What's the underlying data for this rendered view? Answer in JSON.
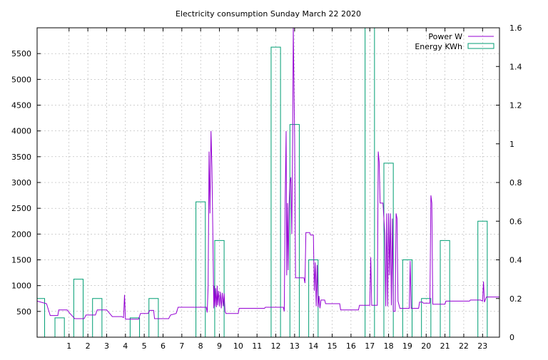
{
  "chart_data": {
    "type": "bar+line",
    "title": "Electricity consumption Sunday March 22 2020",
    "xlabel": "",
    "ylabel": "",
    "y2label": "",
    "xlim": [
      -0.7,
      23.9
    ],
    "ylim": [
      0,
      6000
    ],
    "y2lim": [
      0,
      1.6
    ],
    "x_ticks": [
      1,
      2,
      3,
      4,
      5,
      6,
      7,
      8,
      9,
      10,
      11,
      12,
      13,
      14,
      15,
      16,
      17,
      18,
      19,
      20,
      21,
      22,
      23
    ],
    "y_ticks": [
      500,
      1000,
      1500,
      2000,
      2500,
      3000,
      3500,
      4000,
      4500,
      5000,
      5500
    ],
    "y2_ticks": [
      0,
      0.2,
      0.4,
      0.6,
      0.8,
      1,
      1.2,
      1.4,
      1.6
    ],
    "grid": true,
    "legend_position": "top-right",
    "colors": {
      "power": "#9400d3",
      "energy": "#009e73"
    },
    "series": [
      {
        "name": "Power W",
        "type": "line",
        "axis": "y",
        "points": [
          [
            -0.7,
            700
          ],
          [
            -0.2,
            650
          ],
          [
            0.0,
            420
          ],
          [
            0.4,
            420
          ],
          [
            0.45,
            530
          ],
          [
            0.9,
            530
          ],
          [
            1.0,
            480
          ],
          [
            1.3,
            360
          ],
          [
            1.5,
            360
          ],
          [
            1.8,
            360
          ],
          [
            1.9,
            430
          ],
          [
            2.4,
            430
          ],
          [
            2.5,
            530
          ],
          [
            3.0,
            530
          ],
          [
            3.3,
            400
          ],
          [
            3.8,
            400
          ],
          [
            3.9,
            380
          ],
          [
            3.95,
            820
          ],
          [
            4.0,
            350
          ],
          [
            4.7,
            350
          ],
          [
            4.8,
            460
          ],
          [
            5.2,
            460
          ],
          [
            5.3,
            520
          ],
          [
            5.5,
            520
          ],
          [
            5.55,
            360
          ],
          [
            6.3,
            360
          ],
          [
            6.4,
            430
          ],
          [
            6.7,
            460
          ],
          [
            6.8,
            580
          ],
          [
            8.3,
            580
          ],
          [
            8.35,
            480
          ],
          [
            8.4,
            1000
          ],
          [
            8.45,
            3600
          ],
          [
            8.5,
            2400
          ],
          [
            8.55,
            4000
          ],
          [
            8.6,
            3300
          ],
          [
            8.65,
            2000
          ],
          [
            8.7,
            560
          ],
          [
            8.72,
            1000
          ],
          [
            8.76,
            600
          ],
          [
            8.8,
            950
          ],
          [
            8.84,
            580
          ],
          [
            8.88,
            1000
          ],
          [
            8.9,
            620
          ],
          [
            8.95,
            900
          ],
          [
            9.0,
            600
          ],
          [
            9.05,
            880
          ],
          [
            9.1,
            560
          ],
          [
            9.15,
            860
          ],
          [
            9.2,
            600
          ],
          [
            9.25,
            850
          ],
          [
            9.3,
            500
          ],
          [
            9.35,
            460
          ],
          [
            10.0,
            460
          ],
          [
            10.05,
            560
          ],
          [
            11.4,
            560
          ],
          [
            11.45,
            580
          ],
          [
            12.4,
            580
          ],
          [
            12.45,
            500
          ],
          [
            12.5,
            2700
          ],
          [
            12.55,
            4000
          ],
          [
            12.58,
            1200
          ],
          [
            12.62,
            2600
          ],
          [
            12.66,
            1300
          ],
          [
            12.7,
            2500
          ],
          [
            12.75,
            3000
          ],
          [
            12.8,
            3100
          ],
          [
            12.85,
            2000
          ],
          [
            12.9,
            4000
          ],
          [
            12.93,
            6000
          ],
          [
            12.96,
            5100
          ],
          [
            13.0,
            3900
          ],
          [
            13.05,
            1150
          ],
          [
            13.5,
            1150
          ],
          [
            13.55,
            1050
          ],
          [
            13.6,
            2030
          ],
          [
            13.8,
            2030
          ],
          [
            13.85,
            1980
          ],
          [
            14.0,
            1980
          ],
          [
            14.05,
            900
          ],
          [
            14.1,
            1450
          ],
          [
            14.15,
            600
          ],
          [
            14.2,
            1400
          ],
          [
            14.25,
            580
          ],
          [
            14.3,
            800
          ],
          [
            14.35,
            560
          ],
          [
            14.4,
            720
          ],
          [
            14.6,
            720
          ],
          [
            14.65,
            650
          ],
          [
            15.4,
            650
          ],
          [
            15.45,
            530
          ],
          [
            16.4,
            530
          ],
          [
            16.45,
            620
          ],
          [
            17.0,
            620
          ],
          [
            17.05,
            1550
          ],
          [
            17.1,
            620
          ],
          [
            17.4,
            620
          ],
          [
            17.45,
            3600
          ],
          [
            17.5,
            3400
          ],
          [
            17.55,
            2600
          ],
          [
            17.7,
            2600
          ],
          [
            17.8,
            2000
          ],
          [
            17.85,
            600
          ],
          [
            17.9,
            2400
          ],
          [
            17.95,
            600
          ],
          [
            18.0,
            2400
          ],
          [
            18.05,
            1200
          ],
          [
            18.1,
            2400
          ],
          [
            18.15,
            620
          ],
          [
            18.2,
            2300
          ],
          [
            18.25,
            500
          ],
          [
            18.35,
            500
          ],
          [
            18.4,
            2400
          ],
          [
            18.45,
            2300
          ],
          [
            18.5,
            700
          ],
          [
            18.6,
            560
          ],
          [
            19.1,
            560
          ],
          [
            19.15,
            1480
          ],
          [
            19.2,
            560
          ],
          [
            19.6,
            560
          ],
          [
            19.65,
            680
          ],
          [
            19.8,
            680
          ],
          [
            19.85,
            660
          ],
          [
            20.2,
            660
          ],
          [
            20.25,
            2750
          ],
          [
            20.3,
            2600
          ],
          [
            20.35,
            640
          ],
          [
            21.0,
            640
          ],
          [
            21.05,
            700
          ],
          [
            22.3,
            700
          ],
          [
            22.35,
            720
          ],
          [
            22.9,
            720
          ],
          [
            23.0,
            700
          ],
          [
            23.05,
            1080
          ],
          [
            23.1,
            680
          ],
          [
            23.2,
            780
          ],
          [
            23.9,
            780
          ]
        ]
      },
      {
        "name": "Energy KWh",
        "type": "bar",
        "axis": "y2",
        "bars": [
          [
            -0.7,
            -0.3,
            0.2
          ],
          [
            0.25,
            0.75,
            0.1
          ],
          [
            1.25,
            1.75,
            0.3
          ],
          [
            2.25,
            2.75,
            0.2
          ],
          [
            4.25,
            4.75,
            0.1
          ],
          [
            5.25,
            5.75,
            0.2
          ],
          [
            7.75,
            8.25,
            0.7
          ],
          [
            8.75,
            9.25,
            0.5
          ],
          [
            11.75,
            12.25,
            1.5
          ],
          [
            12.75,
            13.25,
            1.1
          ],
          [
            13.75,
            14.25,
            0.4
          ],
          [
            16.75,
            17.25,
            1.6
          ],
          [
            17.75,
            18.25,
            0.9
          ],
          [
            18.75,
            19.25,
            0.4
          ],
          [
            19.75,
            20.25,
            0.2
          ],
          [
            20.75,
            21.25,
            0.5
          ],
          [
            22.75,
            23.25,
            0.6
          ]
        ]
      }
    ]
  }
}
